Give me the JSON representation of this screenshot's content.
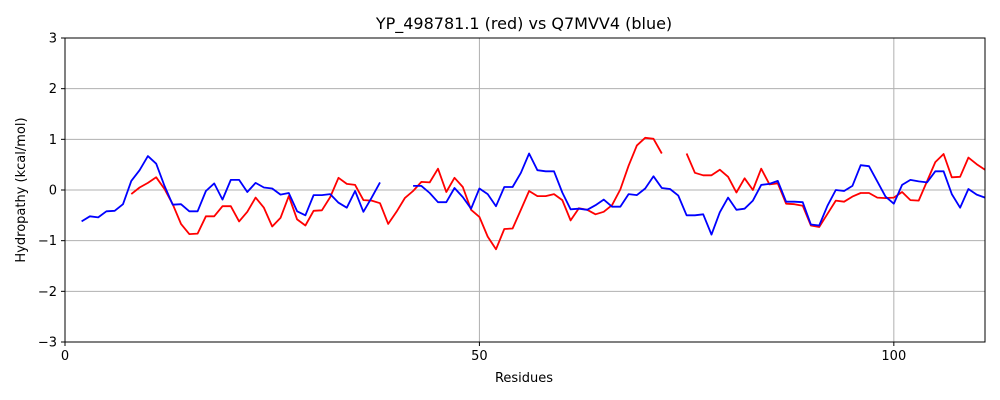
{
  "chart_data": {
    "type": "line",
    "title": "YP_498781.1 (red) vs Q7MVV4 (blue)",
    "xlabel": "Residues",
    "ylabel": "Hydropathy (kcal/mol)",
    "xlim": [
      0,
      111
    ],
    "ylim": [
      -3,
      3
    ],
    "xticks": [
      0,
      50,
      100
    ],
    "yticks": [
      -3,
      -2,
      -1,
      0,
      1,
      2,
      3
    ],
    "grid": true,
    "series": [
      {
        "color": "#ff0000",
        "segments": [
          {
            "x": [
              8,
              9,
              10,
              11,
              12,
              13,
              14,
              15,
              16,
              17,
              18,
              19,
              20,
              21,
              22,
              23,
              24,
              25,
              26,
              27,
              28,
              29,
              30,
              31,
              32,
              33,
              34,
              35,
              36,
              37,
              38,
              39,
              40,
              41,
              42,
              43,
              44,
              45,
              46,
              47,
              48,
              49,
              50,
              51,
              52,
              53,
              54,
              55,
              56,
              57,
              58,
              59,
              60,
              61,
              62,
              63,
              64,
              65,
              66,
              67,
              68,
              69,
              70,
              71,
              72
            ],
            "y": [
              -0.08,
              0.05,
              0.14,
              0.25,
              0.02,
              -0.28,
              -0.67,
              -0.87,
              -0.86,
              -0.52,
              -0.52,
              -0.32,
              -0.32,
              -0.62,
              -0.43,
              -0.15,
              -0.35,
              -0.72,
              -0.55,
              -0.12,
              -0.58,
              -0.7,
              -0.41,
              -0.4,
              -0.14,
              0.24,
              0.12,
              0.1,
              -0.2,
              -0.21,
              -0.26,
              -0.67,
              -0.43,
              -0.16,
              -0.02,
              0.16,
              0.15,
              0.42,
              -0.04,
              0.24,
              0.06,
              -0.39,
              -0.53,
              -0.92,
              -1.17,
              -0.77,
              -0.76,
              -0.39,
              -0.02,
              -0.12,
              -0.12,
              -0.08,
              -0.2,
              -0.6,
              -0.36,
              -0.39,
              -0.48,
              -0.43,
              -0.3,
              0.01,
              0.48,
              0.88,
              1.03,
              1.01,
              0.72
            ]
          },
          {
            "x": [
              75,
              76,
              77,
              78,
              79,
              80,
              81,
              82,
              83,
              84,
              85,
              86,
              87,
              88,
              89,
              90,
              91,
              92,
              93,
              94,
              95,
              96,
              97,
              98,
              99,
              100,
              101,
              102,
              103,
              104,
              105,
              106,
              107,
              108,
              109,
              110,
              111
            ],
            "y": [
              0.72,
              0.34,
              0.29,
              0.29,
              0.4,
              0.26,
              -0.05,
              0.23,
              0.0,
              0.42,
              0.11,
              0.13,
              -0.27,
              -0.28,
              -0.31,
              -0.7,
              -0.73,
              -0.47,
              -0.21,
              -0.23,
              -0.13,
              -0.06,
              -0.06,
              -0.15,
              -0.16,
              -0.15,
              -0.04,
              -0.2,
              -0.21,
              0.17,
              0.55,
              0.71,
              0.25,
              0.26,
              0.64,
              0.51,
              0.4
            ]
          }
        ]
      },
      {
        "color": "#0000ff",
        "segments": [
          {
            "x": [
              2,
              3,
              4,
              5,
              6,
              7,
              8,
              9,
              10,
              11,
              12,
              13,
              14,
              15,
              16,
              17,
              18,
              19,
              20,
              21,
              22,
              23,
              24,
              25,
              26,
              27,
              28,
              29,
              30,
              31,
              32,
              33,
              34,
              35,
              36,
              37,
              38
            ],
            "y": [
              -0.62,
              -0.52,
              -0.54,
              -0.42,
              -0.41,
              -0.28,
              0.18,
              0.39,
              0.67,
              0.52,
              0.08,
              -0.29,
              -0.28,
              -0.42,
              -0.42,
              -0.02,
              0.13,
              -0.19,
              0.2,
              0.2,
              -0.04,
              0.14,
              0.05,
              0.03,
              -0.09,
              -0.06,
              -0.42,
              -0.5,
              -0.1,
              -0.1,
              -0.08,
              -0.25,
              -0.35,
              -0.02,
              -0.43,
              -0.15,
              0.15
            ]
          },
          {
            "x": [
              42,
              43,
              44,
              45,
              46,
              47,
              48,
              49,
              50,
              51,
              52,
              53,
              54,
              55,
              56,
              57,
              58,
              59,
              60,
              61,
              62,
              63,
              64,
              65,
              66,
              67,
              68,
              69,
              70,
              71,
              72,
              73,
              74,
              75,
              76,
              77,
              78,
              79,
              80,
              81,
              82,
              83,
              84,
              85,
              86,
              87,
              88,
              89,
              90,
              91,
              92,
              93,
              94,
              95,
              96,
              97,
              98,
              99,
              100,
              101,
              102,
              103,
              104,
              105,
              106,
              107,
              108,
              109,
              110,
              111
            ],
            "y": [
              0.08,
              0.08,
              -0.06,
              -0.24,
              -0.24,
              0.04,
              -0.14,
              -0.37,
              0.03,
              -0.08,
              -0.32,
              0.06,
              0.06,
              0.34,
              0.72,
              0.39,
              0.37,
              0.37,
              -0.05,
              -0.38,
              -0.37,
              -0.39,
              -0.3,
              -0.19,
              -0.33,
              -0.33,
              -0.08,
              -0.1,
              0.03,
              0.27,
              0.04,
              0.02,
              -0.11,
              -0.5,
              -0.5,
              -0.48,
              -0.88,
              -0.44,
              -0.15,
              -0.39,
              -0.37,
              -0.21,
              0.1,
              0.12,
              0.18,
              -0.23,
              -0.23,
              -0.24,
              -0.68,
              -0.7,
              -0.31,
              0.0,
              -0.02,
              0.08,
              0.49,
              0.47,
              0.17,
              -0.13,
              -0.27,
              0.1,
              0.2,
              0.17,
              0.15,
              0.37,
              0.37,
              -0.08,
              -0.35,
              0.02,
              -0.09,
              -0.15
            ]
          }
        ]
      }
    ]
  }
}
